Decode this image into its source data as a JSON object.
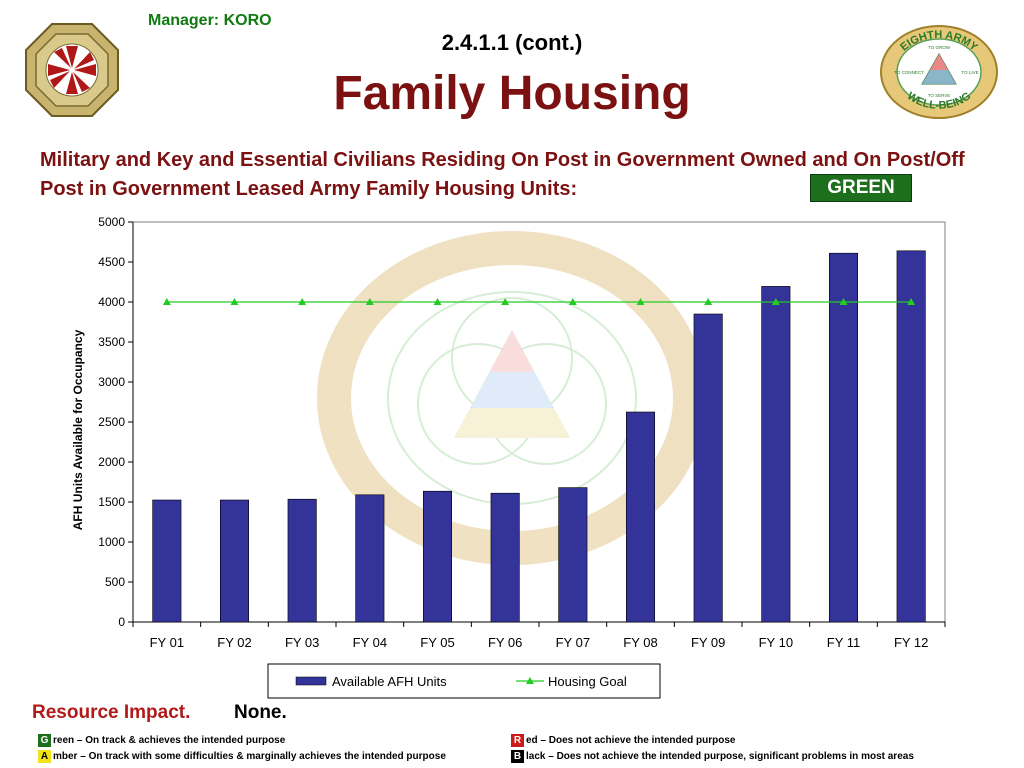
{
  "header": {
    "manager": "Manager: KORO",
    "section": "2.4.1.1 (cont.)",
    "title": "Family Housing",
    "description": "Military and Key and Essential Civilians Residing On Post in Government Owned and On Post/Off Post in Government Leased Army Family Housing Units:",
    "status": "GREEN"
  },
  "logo": {
    "ring_top": "EIGHTH ARMY",
    "ring_bottom": "WELL-BEING",
    "grow": "TO GROW",
    "connect": "TO CONNECT",
    "live": "TO LIVE",
    "serve": "TO SERVE"
  },
  "colors": {
    "title": "#7b1111",
    "manager": "#117a11",
    "bar": "#33339a",
    "goal_line": "#22cc22",
    "status_green": "#1d6e1d"
  },
  "chart_data": {
    "type": "bar",
    "categories": [
      "FY 01",
      "FY 02",
      "FY 03",
      "FY 04",
      "FY 05",
      "FY 06",
      "FY 07",
      "FY 08",
      "FY 09",
      "FY 10",
      "FY 11",
      "FY 12"
    ],
    "series": [
      {
        "name": "Available AFH Units",
        "type": "bar",
        "color": "#33339a",
        "values": [
          1525,
          1525,
          1535,
          1590,
          1635,
          1610,
          1680,
          2625,
          3850,
          4195,
          4610,
          4640
        ]
      },
      {
        "name": "Housing Goal",
        "type": "line",
        "color": "#22cc22",
        "values": [
          4000,
          4000,
          4000,
          4000,
          4000,
          4000,
          4000,
          4000,
          4000,
          4000,
          4000,
          4000
        ]
      }
    ],
    "yticks": [
      "0",
      "500",
      "1000",
      "1500",
      "2000",
      "2500",
      "3000",
      "3500",
      "4000",
      "4500",
      "5000"
    ],
    "ylabel": "AFH Units Available for Occupancy",
    "xlabel": "",
    "ylim": [
      0,
      5000
    ],
    "grid": false,
    "legend": "bottom"
  },
  "footer": {
    "resource_label": "Resource Impact.",
    "resource_value": "None.",
    "legend": [
      {
        "letter": "G",
        "text": "reen – On track & achieves the intended purpose",
        "color": "#1d6e1d",
        "text_color": "#ffffff"
      },
      {
        "letter": "A",
        "text": "mber – On track with some difficulties & marginally achieves the intended purpose",
        "color": "#f2e21a",
        "text_color": "#000000"
      },
      {
        "letter": "R",
        "text": "ed – Does not achieve the intended purpose",
        "color": "#cc1b1b",
        "text_color": "#ffffff"
      },
      {
        "letter": "B",
        "text": "lack – Does not achieve the intended purpose, significant problems in most areas",
        "color": "#000000",
        "text_color": "#ffffff"
      }
    ]
  }
}
